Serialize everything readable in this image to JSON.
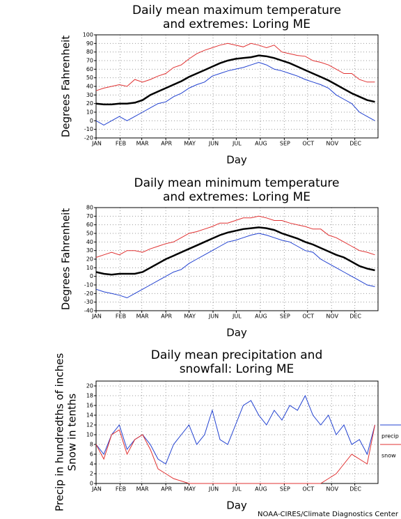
{
  "chart_data": [
    {
      "type": "line",
      "title": [
        "Daily mean maximum temperature",
        "and extremes: Loring ME"
      ],
      "xlabel": "Day",
      "ylabel": [
        "Degrees Fahrenheit"
      ],
      "x": [
        1,
        11,
        21,
        31,
        41,
        51,
        61,
        71,
        81,
        91,
        101,
        111,
        121,
        131,
        141,
        151,
        161,
        171,
        181,
        191,
        201,
        211,
        221,
        231,
        241,
        251,
        261,
        271,
        281,
        291,
        301,
        311,
        321,
        331,
        341,
        351,
        361
      ],
      "xlim": [
        1,
        365
      ],
      "xticks": [
        {
          "value": 1,
          "label": "JAN"
        },
        {
          "value": 32,
          "label": "FEB"
        },
        {
          "value": 60,
          "label": "MAR"
        },
        {
          "value": 91,
          "label": "APR"
        },
        {
          "value": 121,
          "label": "MAY"
        },
        {
          "value": 152,
          "label": "JUN"
        },
        {
          "value": 182,
          "label": "JUL"
        },
        {
          "value": 213,
          "label": "AUG"
        },
        {
          "value": 244,
          "label": "SEP"
        },
        {
          "value": 274,
          "label": "OCT"
        },
        {
          "value": 305,
          "label": "NOV"
        },
        {
          "value": 335,
          "label": "DEC"
        }
      ],
      "ylim": [
        -20,
        100
      ],
      "yticks": [
        -20,
        -10,
        0,
        10,
        20,
        30,
        40,
        50,
        60,
        70,
        80,
        90,
        100
      ],
      "grid": true,
      "series": [
        {
          "color": "#e03030",
          "values": [
            35,
            38,
            40,
            42,
            40,
            48,
            45,
            48,
            52,
            55,
            62,
            65,
            72,
            78,
            82,
            85,
            88,
            90,
            88,
            86,
            90,
            88,
            85,
            88,
            80,
            78,
            76,
            75,
            70,
            68,
            65,
            60,
            55,
            55,
            48,
            45,
            45
          ]
        },
        {
          "color": "#2040d0",
          "values": [
            0,
            -5,
            0,
            5,
            0,
            5,
            10,
            15,
            20,
            22,
            28,
            32,
            38,
            42,
            45,
            52,
            55,
            58,
            60,
            62,
            65,
            68,
            65,
            60,
            58,
            55,
            52,
            48,
            45,
            42,
            38,
            30,
            25,
            20,
            10,
            5,
            0
          ]
        },
        {
          "color": "#000000",
          "values": [
            20,
            19,
            19,
            20,
            20,
            21,
            24,
            30,
            34,
            38,
            42,
            46,
            51,
            55,
            59,
            63,
            67,
            70,
            72,
            73,
            74,
            76,
            75,
            73,
            70,
            67,
            63,
            59,
            55,
            51,
            47,
            42,
            37,
            32,
            28,
            24,
            22
          ]
        }
      ]
    },
    {
      "type": "line",
      "title": [
        "Daily mean minimum temperature",
        "and extremes: Loring ME"
      ],
      "xlabel": "Day",
      "ylabel": [
        "Degrees Fahrenheit"
      ],
      "x": [
        1,
        11,
        21,
        31,
        41,
        51,
        61,
        71,
        81,
        91,
        101,
        111,
        121,
        131,
        141,
        151,
        161,
        171,
        181,
        191,
        201,
        211,
        221,
        231,
        241,
        251,
        261,
        271,
        281,
        291,
        301,
        311,
        321,
        331,
        341,
        351,
        361
      ],
      "xlim": [
        1,
        365
      ],
      "xticks": [
        {
          "value": 1,
          "label": "JAN"
        },
        {
          "value": 32,
          "label": "FEB"
        },
        {
          "value": 60,
          "label": "MAR"
        },
        {
          "value": 91,
          "label": "APR"
        },
        {
          "value": 121,
          "label": "MAY"
        },
        {
          "value": 152,
          "label": "JUN"
        },
        {
          "value": 182,
          "label": "JUL"
        },
        {
          "value": 213,
          "label": "AUG"
        },
        {
          "value": 244,
          "label": "SEP"
        },
        {
          "value": 274,
          "label": "OCT"
        },
        {
          "value": 305,
          "label": "NOV"
        },
        {
          "value": 335,
          "label": "DEC"
        }
      ],
      "ylim": [
        -40,
        80
      ],
      "yticks": [
        -40,
        -30,
        -20,
        -10,
        0,
        10,
        20,
        30,
        40,
        50,
        60,
        70,
        80
      ],
      "grid": true,
      "series": [
        {
          "color": "#e03030",
          "values": [
            22,
            25,
            28,
            25,
            30,
            30,
            28,
            32,
            35,
            38,
            40,
            45,
            50,
            52,
            55,
            58,
            62,
            62,
            65,
            68,
            68,
            70,
            68,
            65,
            65,
            62,
            60,
            58,
            55,
            55,
            48,
            45,
            40,
            35,
            30,
            28,
            25
          ]
        },
        {
          "color": "#2040d0",
          "values": [
            -15,
            -18,
            -20,
            -22,
            -25,
            -20,
            -15,
            -10,
            -5,
            0,
            5,
            8,
            15,
            20,
            25,
            30,
            35,
            40,
            42,
            45,
            48,
            50,
            48,
            45,
            42,
            40,
            35,
            30,
            28,
            20,
            15,
            10,
            5,
            0,
            -5,
            -10,
            -12
          ]
        },
        {
          "color": "#000000",
          "values": [
            5,
            3,
            2,
            3,
            3,
            3,
            5,
            10,
            15,
            20,
            24,
            28,
            32,
            36,
            40,
            44,
            48,
            51,
            53,
            55,
            56,
            57,
            56,
            54,
            50,
            47,
            44,
            40,
            37,
            33,
            29,
            25,
            22,
            17,
            12,
            9,
            7
          ]
        }
      ]
    },
    {
      "type": "line",
      "title": [
        "Daily mean precipitation and",
        "snowfall: Loring ME"
      ],
      "xlabel": "Day",
      "ylabel": [
        "Precip in hundredths of inches",
        "Snow in tenths"
      ],
      "x": [
        1,
        11,
        21,
        31,
        41,
        51,
        61,
        71,
        81,
        91,
        101,
        111,
        121,
        131,
        141,
        151,
        161,
        171,
        181,
        191,
        201,
        211,
        221,
        231,
        241,
        251,
        261,
        271,
        281,
        291,
        301,
        311,
        321,
        331,
        341,
        351,
        361
      ],
      "xlim": [
        1,
        365
      ],
      "xticks": [
        {
          "value": 1,
          "label": "JAN"
        },
        {
          "value": 32,
          "label": "FEB"
        },
        {
          "value": 60,
          "label": "MAR"
        },
        {
          "value": 91,
          "label": "APR"
        },
        {
          "value": 121,
          "label": "MAY"
        },
        {
          "value": 152,
          "label": "JUN"
        },
        {
          "value": 182,
          "label": "JUL"
        },
        {
          "value": 213,
          "label": "AUG"
        },
        {
          "value": 244,
          "label": "SEP"
        },
        {
          "value": 274,
          "label": "OCT"
        },
        {
          "value": 305,
          "label": "NOV"
        },
        {
          "value": 335,
          "label": "DEC"
        }
      ],
      "ylim": [
        0,
        21
      ],
      "yticks": [
        0,
        2,
        4,
        6,
        8,
        10,
        12,
        14,
        16,
        18,
        20
      ],
      "grid": true,
      "series": [
        {
          "name": "precip",
          "color": "#2040d0",
          "values": [
            8,
            6,
            10,
            12,
            7,
            9,
            10,
            8,
            5,
            4,
            8,
            10,
            12,
            8,
            10,
            15,
            9,
            8,
            12,
            16,
            17,
            14,
            12,
            15,
            13,
            16,
            15,
            18,
            14,
            12,
            14,
            10,
            12,
            8,
            9,
            6,
            12
          ]
        },
        {
          "name": "snow",
          "color": "#e03030",
          "values": [
            8,
            5,
            10,
            11,
            6,
            9,
            10,
            7,
            3,
            2,
            1,
            0.5,
            0,
            0,
            0,
            0,
            0,
            0,
            0,
            0,
            0,
            0,
            0,
            0,
            0,
            0,
            0,
            0,
            0,
            0,
            1,
            2,
            4,
            6,
            5,
            4,
            12
          ]
        }
      ]
    }
  ],
  "footer": "NOAA-CIRES/Climate Diagnostics Center"
}
